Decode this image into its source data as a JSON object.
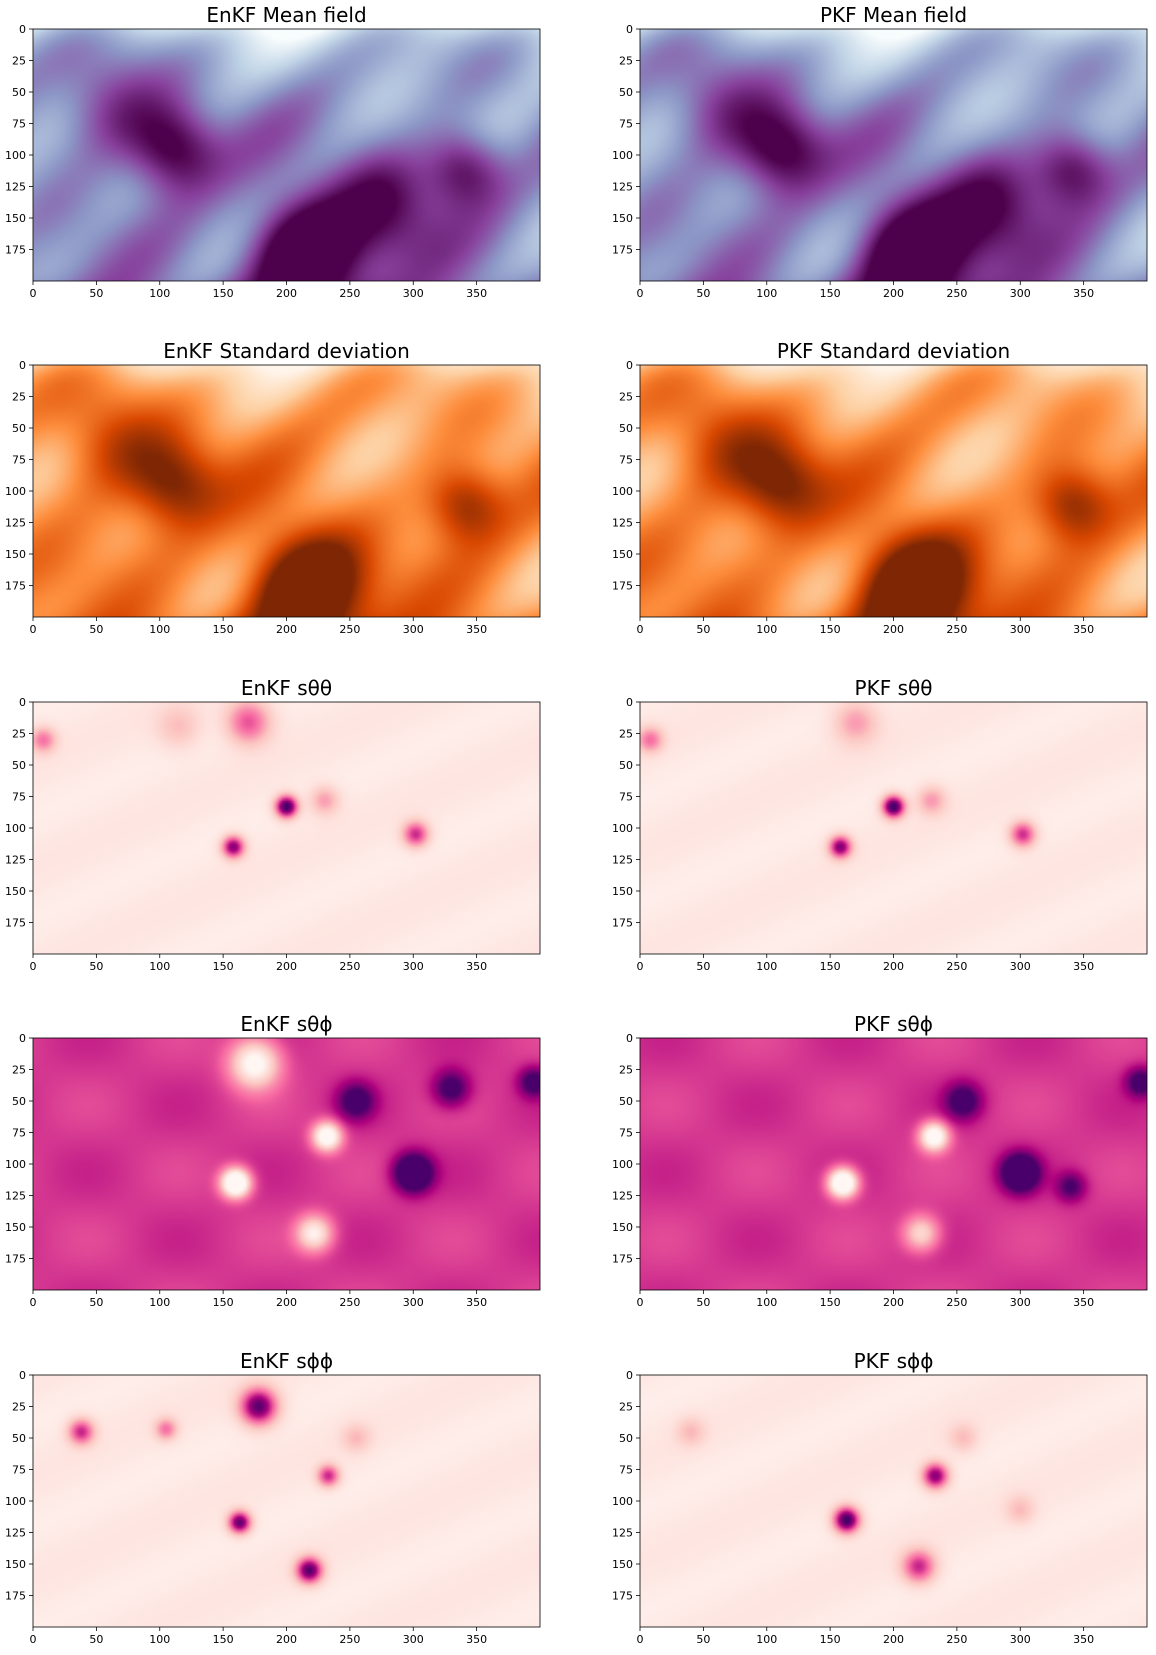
{
  "chart_data": [
    {
      "type": "heatmap",
      "title": "EnKF Mean field",
      "colormap": "BuPu",
      "colormap_stops": [
        "#f7fcfd",
        "#bfd3e6",
        "#8c96c6",
        "#88419d",
        "#4d004b"
      ],
      "xlim": [
        0,
        400
      ],
      "ylim": [
        200,
        0
      ],
      "xticks": [
        0,
        50,
        100,
        150,
        200,
        250,
        300,
        350
      ],
      "yticks": [
        0,
        25,
        50,
        75,
        100,
        125,
        150,
        175
      ],
      "features": [
        {
          "x": 215,
          "y": 178,
          "strength": 1.0,
          "spread": 32
        },
        {
          "x": 110,
          "y": 95,
          "strength": 0.7,
          "spread": 25
        },
        {
          "x": 340,
          "y": 110,
          "strength": 0.6,
          "spread": 22
        },
        {
          "x": 60,
          "y": 60,
          "strength": 0.4,
          "spread": 30
        },
        {
          "x": 280,
          "y": 140,
          "strength": 0.5,
          "spread": 30
        }
      ]
    },
    {
      "type": "heatmap",
      "title": "PKF Mean field",
      "colormap": "BuPu",
      "colormap_stops": [
        "#f7fcfd",
        "#bfd3e6",
        "#8c96c6",
        "#88419d",
        "#4d004b"
      ],
      "xlim": [
        0,
        400
      ],
      "ylim": [
        200,
        0
      ],
      "xticks": [
        0,
        50,
        100,
        150,
        200,
        250,
        300,
        350
      ],
      "yticks": [
        0,
        25,
        50,
        75,
        100,
        125,
        150,
        175
      ],
      "features": [
        {
          "x": 215,
          "y": 178,
          "strength": 1.0,
          "spread": 32
        },
        {
          "x": 110,
          "y": 95,
          "strength": 0.7,
          "spread": 25
        },
        {
          "x": 340,
          "y": 110,
          "strength": 0.6,
          "spread": 22
        },
        {
          "x": 60,
          "y": 60,
          "strength": 0.4,
          "spread": 30
        },
        {
          "x": 280,
          "y": 140,
          "strength": 0.5,
          "spread": 30
        }
      ]
    },
    {
      "type": "heatmap",
      "title": "EnKF Standard deviation",
      "colormap": "Oranges",
      "colormap_stops": [
        "#fff5eb",
        "#fdd0a2",
        "#fd8d3c",
        "#d94801",
        "#7f2704"
      ],
      "xlim": [
        0,
        400
      ],
      "ylim": [
        200,
        0
      ],
      "xticks": [
        0,
        50,
        100,
        150,
        200,
        250,
        300,
        350
      ],
      "yticks": [
        0,
        25,
        50,
        75,
        100,
        125,
        150,
        175
      ],
      "features": [
        {
          "x": 215,
          "y": 178,
          "strength": 1.0,
          "spread": 32
        },
        {
          "x": 110,
          "y": 95,
          "strength": 0.6,
          "spread": 25
        },
        {
          "x": 340,
          "y": 110,
          "strength": 0.6,
          "spread": 22
        },
        {
          "x": 60,
          "y": 60,
          "strength": 0.4,
          "spread": 30
        }
      ]
    },
    {
      "type": "heatmap",
      "title": "PKF Standard deviation",
      "colormap": "Oranges",
      "colormap_stops": [
        "#fff5eb",
        "#fdd0a2",
        "#fd8d3c",
        "#d94801",
        "#7f2704"
      ],
      "xlim": [
        0,
        400
      ],
      "ylim": [
        200,
        0
      ],
      "xticks": [
        0,
        50,
        100,
        150,
        200,
        250,
        300,
        350
      ],
      "yticks": [
        0,
        25,
        50,
        75,
        100,
        125,
        150,
        175
      ],
      "features": [
        {
          "x": 215,
          "y": 178,
          "strength": 1.0,
          "spread": 32
        },
        {
          "x": 110,
          "y": 95,
          "strength": 0.6,
          "spread": 25
        },
        {
          "x": 340,
          "y": 110,
          "strength": 0.6,
          "spread": 22
        },
        {
          "x": 60,
          "y": 60,
          "strength": 0.4,
          "spread": 30
        }
      ]
    },
    {
      "type": "heatmap",
      "title": "EnKF sθθ",
      "colormap": "RdPu",
      "colormap_stops": [
        "#fff7f3",
        "#fcc5c0",
        "#f768a1",
        "#ae017e",
        "#49006a"
      ],
      "xlim": [
        0,
        400
      ],
      "ylim": [
        200,
        0
      ],
      "xticks": [
        0,
        50,
        100,
        150,
        200,
        250,
        300,
        350
      ],
      "yticks": [
        0,
        25,
        50,
        75,
        100,
        125,
        150,
        175
      ],
      "features": [
        {
          "x": 200,
          "y": 83,
          "strength": 1.0,
          "spread": 6
        },
        {
          "x": 158,
          "y": 115,
          "strength": 0.8,
          "spread": 6
        },
        {
          "x": 302,
          "y": 105,
          "strength": 0.6,
          "spread": 7
        },
        {
          "x": 170,
          "y": 16,
          "strength": 0.5,
          "spread": 12
        },
        {
          "x": 8,
          "y": 30,
          "strength": 0.4,
          "spread": 7
        },
        {
          "x": 230,
          "y": 78,
          "strength": 0.3,
          "spread": 8
        },
        {
          "x": 115,
          "y": 20,
          "strength": 0.2,
          "spread": 12
        }
      ]
    },
    {
      "type": "heatmap",
      "title": "PKF sθθ",
      "colormap": "RdPu",
      "colormap_stops": [
        "#fff7f3",
        "#fcc5c0",
        "#f768a1",
        "#ae017e",
        "#49006a"
      ],
      "xlim": [
        0,
        400
      ],
      "ylim": [
        200,
        0
      ],
      "xticks": [
        0,
        50,
        100,
        150,
        200,
        250,
        300,
        350
      ],
      "yticks": [
        0,
        25,
        50,
        75,
        100,
        125,
        150,
        175
      ],
      "features": [
        {
          "x": 200,
          "y": 83,
          "strength": 1.0,
          "spread": 6
        },
        {
          "x": 158,
          "y": 115,
          "strength": 0.8,
          "spread": 6
        },
        {
          "x": 302,
          "y": 105,
          "strength": 0.6,
          "spread": 7
        },
        {
          "x": 170,
          "y": 16,
          "strength": 0.3,
          "spread": 12
        },
        {
          "x": 8,
          "y": 30,
          "strength": 0.4,
          "spread": 7
        },
        {
          "x": 230,
          "y": 78,
          "strength": 0.3,
          "spread": 8
        }
      ]
    },
    {
      "type": "heatmap",
      "title": "EnKF sθϕ",
      "colormap": "RdPu",
      "colormap_stops": [
        "#fff7f3",
        "#fcc5c0",
        "#f768a1",
        "#ae017e",
        "#49006a"
      ],
      "background_level": 0.62,
      "xlim": [
        0,
        400
      ],
      "ylim": [
        200,
        0
      ],
      "xticks": [
        0,
        50,
        100,
        150,
        200,
        250,
        300,
        350
      ],
      "yticks": [
        0,
        25,
        50,
        75,
        100,
        125,
        150,
        175
      ],
      "features": [
        {
          "x": 160,
          "y": 115,
          "strength": -1.0,
          "spread": 8
        },
        {
          "x": 232,
          "y": 78,
          "strength": -0.8,
          "spread": 8
        },
        {
          "x": 222,
          "y": 155,
          "strength": -0.6,
          "spread": 10
        },
        {
          "x": 175,
          "y": 20,
          "strength": -0.7,
          "spread": 14
        },
        {
          "x": 300,
          "y": 107,
          "strength": 0.9,
          "spread": 10
        },
        {
          "x": 255,
          "y": 50,
          "strength": 0.5,
          "spread": 10
        },
        {
          "x": 330,
          "y": 40,
          "strength": 0.5,
          "spread": 10
        },
        {
          "x": 395,
          "y": 35,
          "strength": 0.5,
          "spread": 8
        }
      ]
    },
    {
      "type": "heatmap",
      "title": "PKF sθϕ",
      "colormap": "RdPu",
      "colormap_stops": [
        "#fff7f3",
        "#fcc5c0",
        "#f768a1",
        "#ae017e",
        "#49006a"
      ],
      "background_level": 0.62,
      "xlim": [
        0,
        400
      ],
      "ylim": [
        200,
        0
      ],
      "xticks": [
        0,
        50,
        100,
        150,
        200,
        250,
        300,
        350
      ],
      "yticks": [
        0,
        25,
        50,
        75,
        100,
        125,
        150,
        175
      ],
      "features": [
        {
          "x": 160,
          "y": 115,
          "strength": -1.0,
          "spread": 8
        },
        {
          "x": 232,
          "y": 78,
          "strength": -0.8,
          "spread": 8
        },
        {
          "x": 222,
          "y": 155,
          "strength": -0.5,
          "spread": 10
        },
        {
          "x": 300,
          "y": 107,
          "strength": 0.9,
          "spread": 10
        },
        {
          "x": 255,
          "y": 50,
          "strength": 0.5,
          "spread": 10
        },
        {
          "x": 340,
          "y": 118,
          "strength": 0.4,
          "spread": 8
        },
        {
          "x": 395,
          "y": 35,
          "strength": 0.5,
          "spread": 8
        }
      ]
    },
    {
      "type": "heatmap",
      "title": "EnKF sϕϕ",
      "colormap": "RdPu",
      "colormap_stops": [
        "#fff7f3",
        "#fcc5c0",
        "#f768a1",
        "#ae017e",
        "#49006a"
      ],
      "xlim": [
        0,
        400
      ],
      "ylim": [
        200,
        0
      ],
      "xticks": [
        0,
        50,
        100,
        150,
        200,
        250,
        300,
        350
      ],
      "yticks": [
        0,
        25,
        50,
        75,
        100,
        125,
        150,
        175
      ],
      "features": [
        {
          "x": 178,
          "y": 25,
          "strength": 0.9,
          "spread": 10
        },
        {
          "x": 163,
          "y": 117,
          "strength": 0.9,
          "spread": 6
        },
        {
          "x": 218,
          "y": 155,
          "strength": 0.9,
          "spread": 7
        },
        {
          "x": 38,
          "y": 45,
          "strength": 0.6,
          "spread": 7
        },
        {
          "x": 233,
          "y": 80,
          "strength": 0.6,
          "spread": 6
        },
        {
          "x": 105,
          "y": 43,
          "strength": 0.4,
          "spread": 6
        },
        {
          "x": 255,
          "y": 50,
          "strength": 0.2,
          "spread": 8
        }
      ]
    },
    {
      "type": "heatmap",
      "title": "PKF sϕϕ",
      "colormap": "RdPu",
      "colormap_stops": [
        "#fff7f3",
        "#fcc5c0",
        "#f768a1",
        "#ae017e",
        "#49006a"
      ],
      "xlim": [
        0,
        400
      ],
      "ylim": [
        200,
        0
      ],
      "xticks": [
        0,
        50,
        100,
        150,
        200,
        250,
        300,
        350
      ],
      "yticks": [
        0,
        25,
        50,
        75,
        100,
        125,
        150,
        175
      ],
      "features": [
        {
          "x": 163,
          "y": 115,
          "strength": 1.0,
          "spread": 7
        },
        {
          "x": 233,
          "y": 80,
          "strength": 0.8,
          "spread": 7
        },
        {
          "x": 220,
          "y": 152,
          "strength": 0.6,
          "spread": 9
        },
        {
          "x": 40,
          "y": 45,
          "strength": 0.2,
          "spread": 8
        },
        {
          "x": 255,
          "y": 50,
          "strength": 0.2,
          "spread": 8
        },
        {
          "x": 300,
          "y": 107,
          "strength": 0.2,
          "spread": 8
        }
      ]
    }
  ]
}
